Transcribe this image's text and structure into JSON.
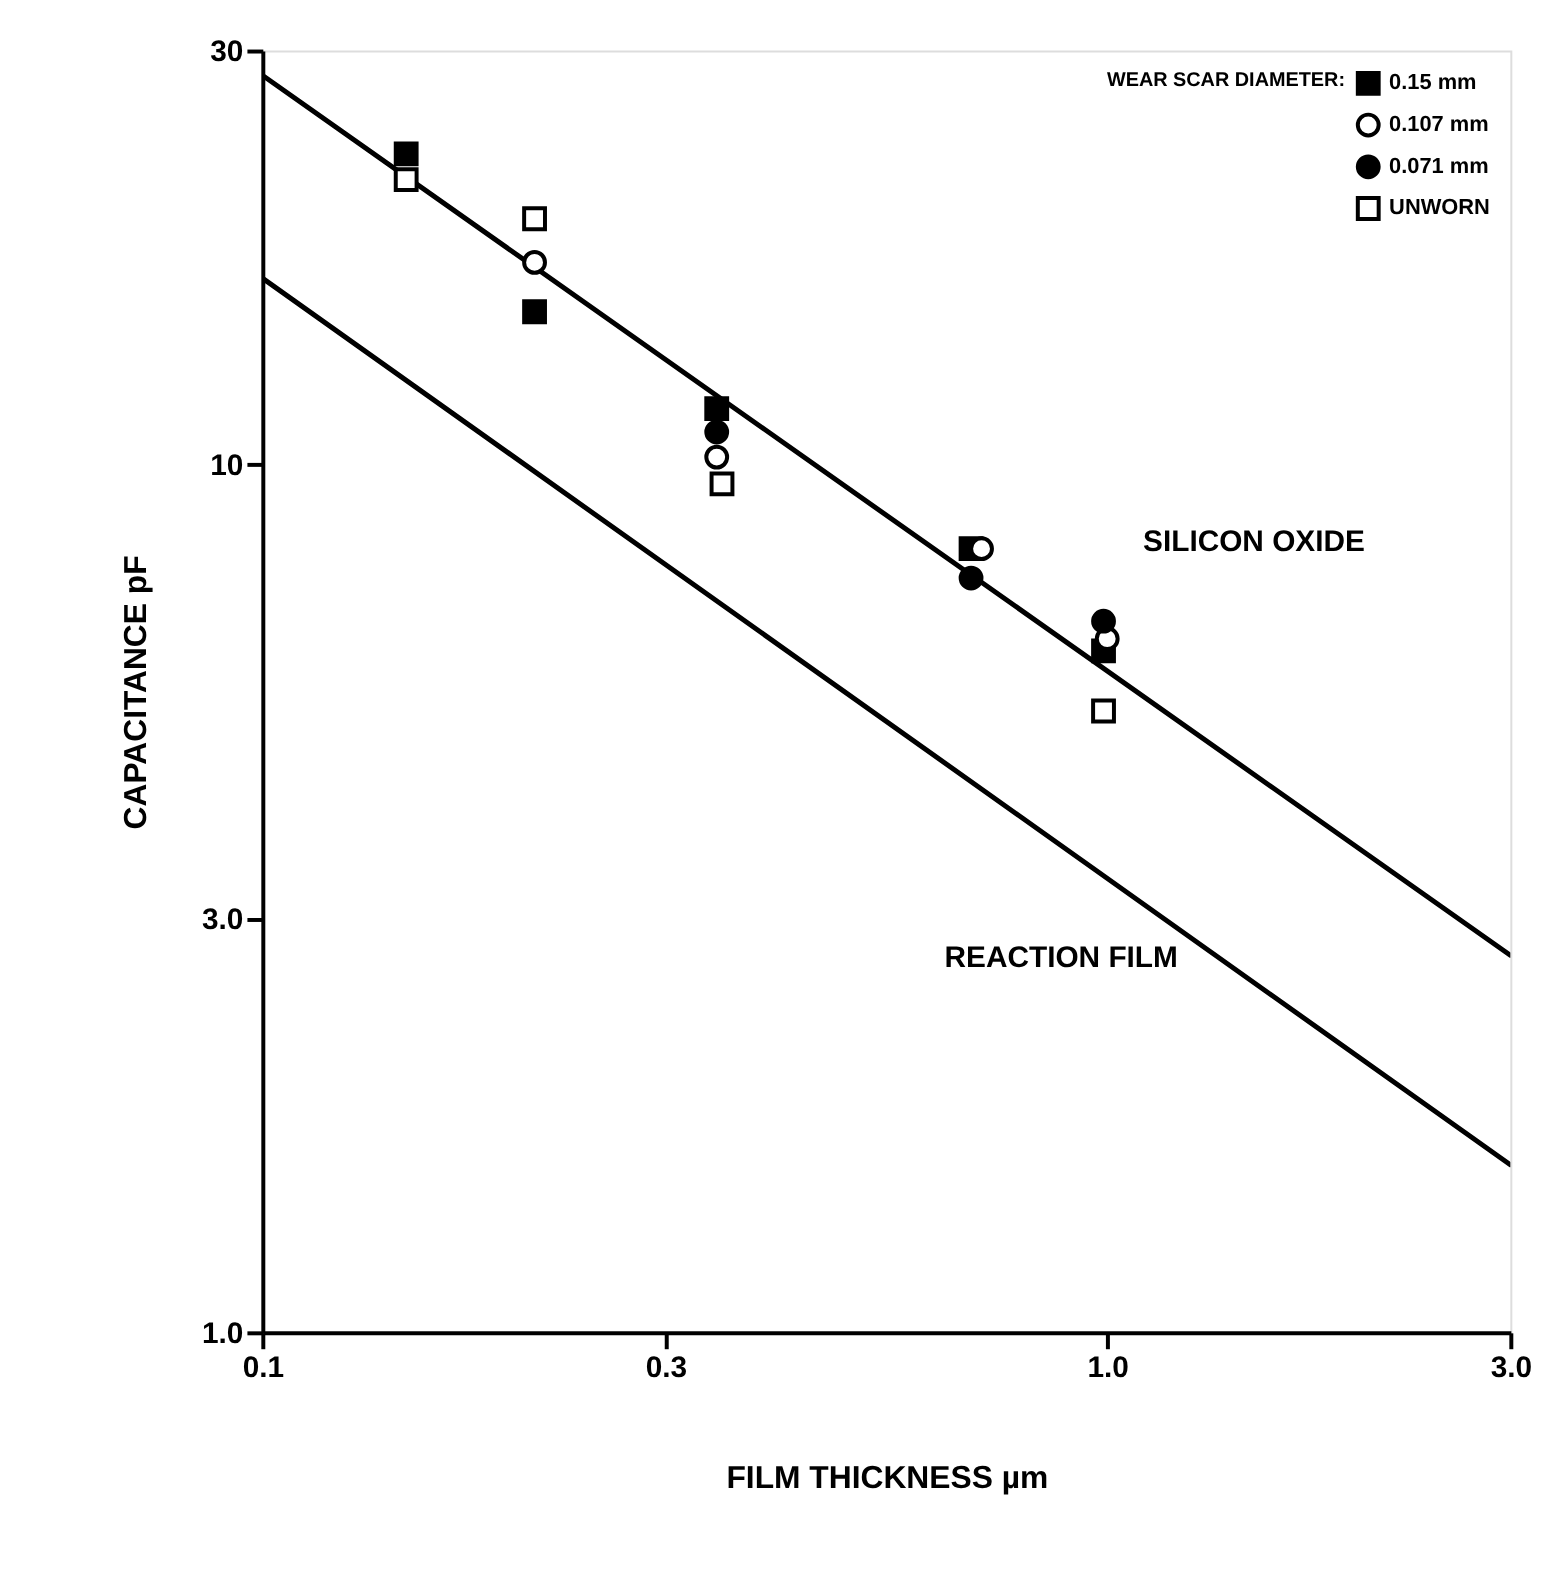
{
  "chart_data": {
    "type": "scatter",
    "xlabel": "FILM THICKNESS  µm",
    "ylabel": "CAPACITANCE   pF",
    "legend_title": "WEAR SCAR DIAMETER:",
    "log": "xy",
    "grid": false,
    "legend": "top right",
    "xlim": [
      0.1,
      3.0
    ],
    "xticks": [
      0.1,
      0.3,
      {
        "value": 1,
        "label": "1.0"
      },
      {
        "value": 3,
        "label": "3.0"
      }
    ],
    "ylim": [
      1.0,
      30
    ],
    "yticks": [
      {
        "value": 1,
        "label": "1.0"
      },
      {
        "value": 3,
        "label": "3.0"
      },
      10,
      30
    ],
    "series": [
      {
        "name": "0.15 mm",
        "marker": "square",
        "color": "#000000",
        "x": [
          0.148,
          0.21,
          0.345,
          0.69,
          0.99
        ],
        "values": [
          22.8,
          15.0,
          11.6,
          8.0,
          6.1
        ]
      },
      {
        "name": "0.107 mm",
        "marker": "circle",
        "color": "#ffffff",
        "x": [
          0.21,
          0.345,
          0.71,
          1.0
        ],
        "values": [
          17.1,
          10.2,
          8.0,
          6.3
        ]
      },
      {
        "name": "0.071 mm",
        "marker": "circle",
        "color": "#000000",
        "x": [
          0.345,
          0.69,
          0.99
        ],
        "values": [
          10.9,
          7.4,
          6.6
        ]
      },
      {
        "name": "UNWORN",
        "marker": "square",
        "color": "#ffffff",
        "x": [
          0.148,
          0.21,
          0.35,
          0.99
        ],
        "values": [
          21.3,
          19.2,
          9.5,
          5.2
        ]
      },
      {
        "type": "line",
        "line_style": "solid",
        "color": "#000000",
        "x": [
          0.1,
          3.0
        ],
        "values": [
          28.1,
          2.72
        ]
      },
      {
        "type": "line",
        "line_style": "solid",
        "color": "#000000",
        "x": [
          0.1,
          3.0
        ],
        "values": [
          16.4,
          1.56
        ]
      }
    ],
    "annotations": [
      "SILICON OXIDE",
      "REACTION FILM"
    ]
  }
}
